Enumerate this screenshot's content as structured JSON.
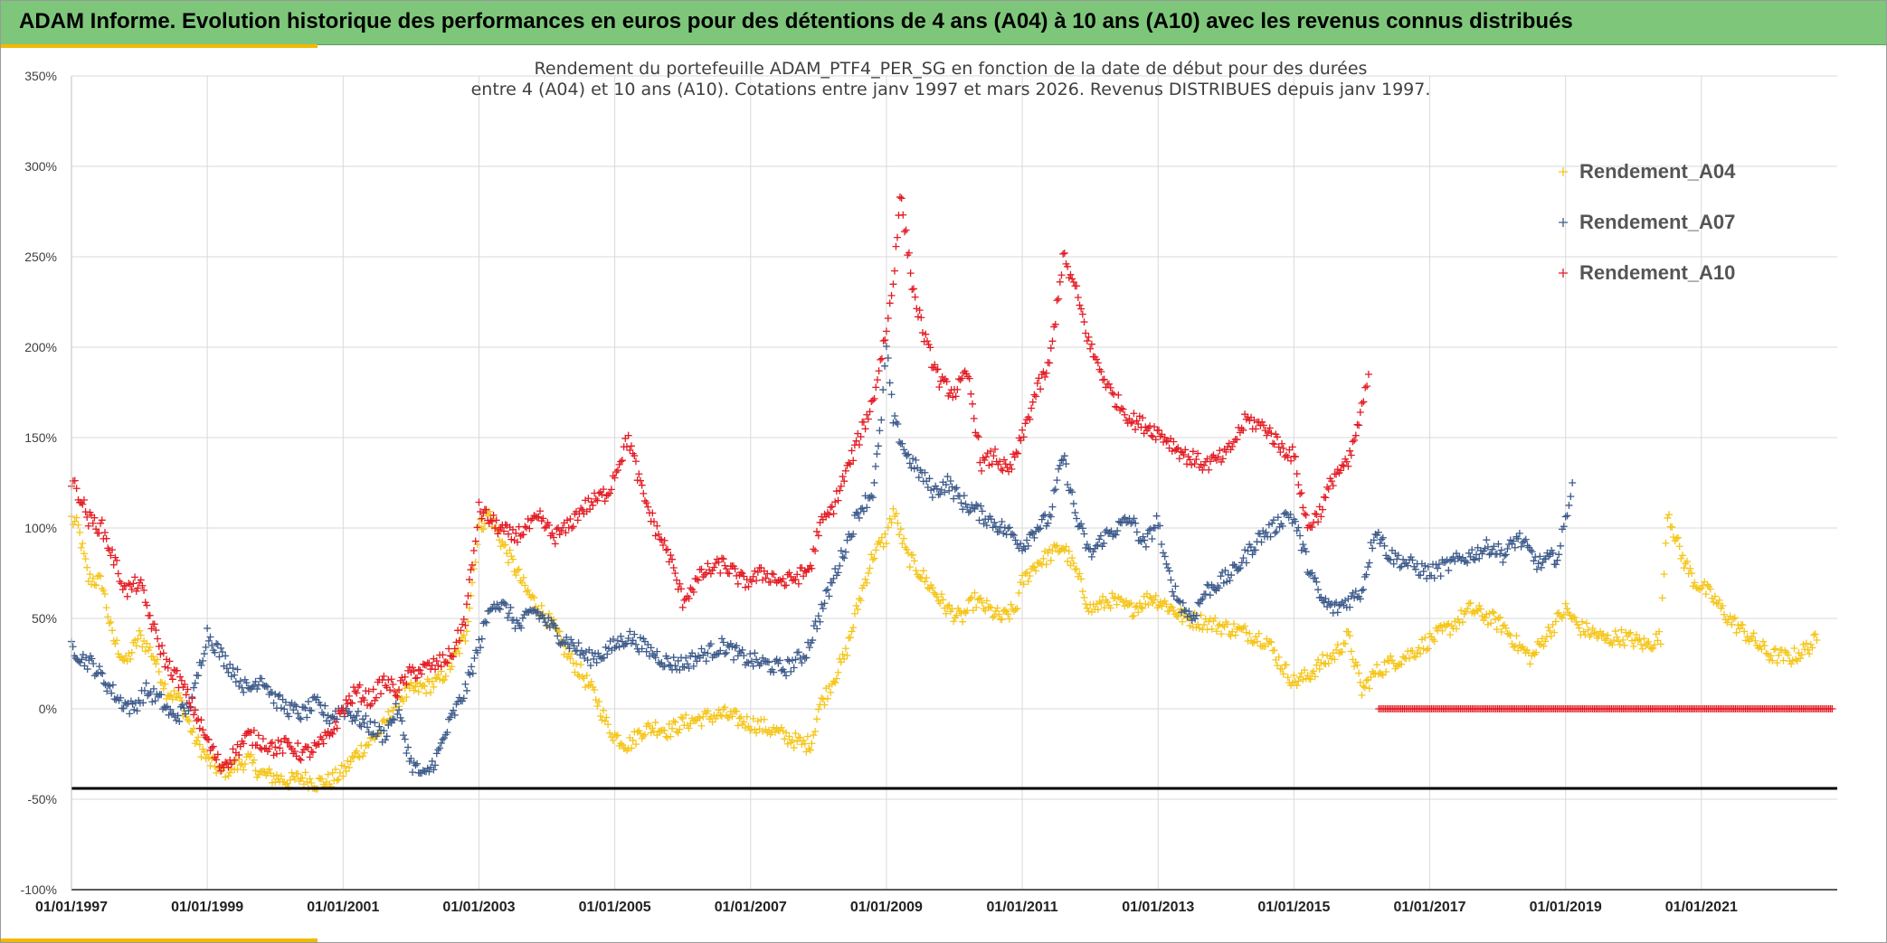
{
  "banner": {
    "title": "ADAM Informe. Evolution historique des performances en euros pour des détentions de 4 ans (A04) à 10 ans (A10) avec les revenus connus distribués",
    "background": "#7dc67a",
    "accent": "#f5b800"
  },
  "chart_data": {
    "type": "scatter",
    "title_line1": "Rendement du portefeuille ADAM_PTF4_PER_SG  en fonction de la date de début pour des durées",
    "title_line2": "entre 4 (A04) et 10 ans (A10). Cotations entre janv 1997 et mars 2026. Revenus DISTRIBUES depuis janv 1997.",
    "x_range": [
      1997.0,
      2023.0
    ],
    "ylim": [
      -100,
      350
    ],
    "y_ticks": [
      -100,
      -50,
      0,
      50,
      100,
      150,
      200,
      250,
      300,
      350
    ],
    "y_tick_labels": [
      "-100%",
      "-50%",
      "0%",
      "50%",
      "100%",
      "150%",
      "200%",
      "250%",
      "300%",
      "350%"
    ],
    "x_ticks": [
      1997,
      1999,
      2001,
      2003,
      2005,
      2007,
      2009,
      2011,
      2013,
      2015,
      2017,
      2019,
      2021
    ],
    "x_tick_labels": [
      "01/01/1997",
      "01/01/1999",
      "01/01/2001",
      "01/01/2003",
      "01/01/2005",
      "01/01/2007",
      "01/01/2009",
      "01/01/2011",
      "01/01/2013",
      "01/01/2015",
      "01/01/2017",
      "01/01/2019",
      "01/01/2021"
    ],
    "reference_line": -44,
    "legend_position": "top-right",
    "grid": true,
    "series": [
      {
        "name": "Rendement_A04",
        "color": "#f5c518",
        "x": [
          1997.0,
          1997.1,
          1997.25,
          1997.45,
          1997.6,
          1997.8,
          1998.0,
          1998.2,
          1998.4,
          1998.6,
          1998.8,
          1999.0,
          1999.2,
          1999.4,
          1999.6,
          1999.8,
          2000.0,
          2000.2,
          2000.4,
          2000.6,
          2000.8,
          2001.0,
          2001.2,
          2001.4,
          2001.6,
          2001.8,
          2002.0,
          2002.2,
          2002.4,
          2002.6,
          2002.8,
          2002.9,
          2003.0,
          2003.15,
          2003.3,
          2003.5,
          2003.7,
          2003.9,
          2004.1,
          2004.3,
          2004.5,
          2004.7,
          2004.9,
          2005.0,
          2005.2,
          2005.4,
          2005.6,
          2005.8,
          2006.0,
          2006.3,
          2006.6,
          2006.9,
          2007.2,
          2007.5,
          2007.8,
          2007.9,
          2008.0,
          2008.2,
          2008.4,
          2008.6,
          2008.8,
          2009.0,
          2009.1,
          2009.3,
          2009.5,
          2009.7,
          2009.9,
          2010.1,
          2010.3,
          2010.5,
          2010.7,
          2010.9,
          2011.0,
          2011.2,
          2011.4,
          2011.6,
          2011.8,
          2012.0,
          2012.3,
          2012.6,
          2012.9,
          2013.1,
          2013.4,
          2013.7,
          2014.0,
          2014.3,
          2014.6,
          2014.8,
          2015.0,
          2015.2,
          2015.4,
          2015.6,
          2015.8,
          2016.0,
          2016.2,
          2016.4,
          2016.7,
          2017.0,
          2017.3,
          2017.6,
          2017.9,
          2018.1,
          2018.3,
          2018.5,
          2018.7,
          2018.9,
          2019.0,
          2019.2,
          2019.4,
          2019.6,
          2019.8,
          2020.0,
          2020.2,
          2020.4,
          2020.5,
          2020.7,
          2020.9,
          2021.0,
          2021.2,
          2021.4,
          2021.7,
          2022.0,
          2022.3,
          2022.5,
          2022.7
        ],
        "y": [
          105,
          100,
          72,
          70,
          40,
          25,
          40,
          30,
          10,
          5,
          -15,
          -28,
          -35,
          -32,
          -28,
          -36,
          -38,
          -40,
          -38,
          -41,
          -40,
          -35,
          -25,
          -18,
          -10,
          5,
          10,
          12,
          15,
          25,
          40,
          70,
          100,
          108,
          95,
          80,
          65,
          55,
          45,
          30,
          20,
          8,
          -10,
          -15,
          -20,
          -12,
          -10,
          -12,
          -8,
          -5,
          -3,
          -7,
          -10,
          -15,
          -20,
          -18,
          0,
          15,
          30,
          60,
          85,
          95,
          110,
          85,
          75,
          65,
          55,
          50,
          60,
          55,
          50,
          55,
          70,
          80,
          85,
          90,
          75,
          55,
          60,
          55,
          62,
          58,
          50,
          48,
          45,
          42,
          38,
          25,
          15,
          18,
          25,
          30,
          40,
          10,
          20,
          25,
          30,
          38,
          45,
          55,
          50,
          45,
          35,
          28,
          40,
          50,
          55,
          45,
          42,
          38,
          40,
          38,
          35,
          40,
          110,
          85,
          70,
          68,
          60,
          50,
          40,
          30,
          28,
          32,
          38
        ]
      },
      {
        "name": "Rendement_A07",
        "color": "#3c5a8a",
        "x": [
          1997.0,
          1997.15,
          1997.3,
          1997.5,
          1997.7,
          1997.9,
          1998.1,
          1998.3,
          1998.5,
          1998.7,
          1998.8,
          1999.0,
          1999.2,
          1999.4,
          1999.6,
          1999.8,
          2000.0,
          2000.2,
          2000.4,
          2000.6,
          2000.8,
          2001.0,
          2001.2,
          2001.4,
          2001.6,
          2001.8,
          2002.0,
          2002.2,
          2002.4,
          2002.6,
          2002.8,
          2003.0,
          2003.2,
          2003.4,
          2003.6,
          2003.8,
          2004.0,
          2004.2,
          2004.4,
          2004.6,
          2004.8,
          2005.0,
          2005.2,
          2005.4,
          2005.6,
          2005.8,
          2006.0,
          2006.3,
          2006.6,
          2006.9,
          2007.2,
          2007.5,
          2007.8,
          2008.0,
          2008.2,
          2008.4,
          2008.6,
          2008.8,
          2008.9,
          2009.0,
          2009.1,
          2009.3,
          2009.5,
          2009.7,
          2009.9,
          2010.1,
          2010.3,
          2010.5,
          2010.7,
          2010.9,
          2011.0,
          2011.2,
          2011.4,
          2011.6,
          2011.8,
          2012.0,
          2012.2,
          2012.4,
          2012.6,
          2012.8,
          2013.0,
          2013.1,
          2013.3,
          2013.5,
          2013.7,
          2013.9,
          2014.1,
          2014.3,
          2014.5,
          2014.7,
          2014.9,
          2015.0,
          2015.2,
          2015.4,
          2015.6,
          2015.8,
          2016.0,
          2016.2,
          2016.4,
          2016.7,
          2017.0,
          2017.3,
          2017.6,
          2017.9,
          2018.1,
          2018.3,
          2018.6,
          2018.9,
          2019.0,
          2019.1
        ],
        "y": [
          35,
          28,
          25,
          15,
          5,
          0,
          10,
          5,
          -5,
          0,
          8,
          42,
          30,
          20,
          10,
          18,
          5,
          0,
          -3,
          3,
          -5,
          0,
          -5,
          -10,
          -15,
          0,
          -30,
          -38,
          -25,
          -5,
          10,
          35,
          60,
          55,
          45,
          55,
          48,
          40,
          35,
          28,
          30,
          35,
          40,
          35,
          30,
          25,
          25,
          30,
          35,
          28,
          25,
          22,
          30,
          50,
          70,
          90,
          110,
          120,
          150,
          200,
          160,
          140,
          130,
          120,
          125,
          115,
          110,
          105,
          100,
          95,
          90,
          100,
          105,
          140,
          105,
          85,
          95,
          100,
          105,
          90,
          105,
          80,
          60,
          50,
          65,
          70,
          75,
          85,
          95,
          100,
          108,
          105,
          80,
          60,
          55,
          60,
          65,
          100,
          85,
          80,
          75,
          80,
          85,
          90,
          85,
          95,
          80,
          85,
          105,
          125
        ]
      },
      {
        "name": "Rendement_A10",
        "color": "#e31b23",
        "x": [
          1997.0,
          1997.1,
          1997.25,
          1997.45,
          1997.6,
          1997.8,
          1998.0,
          1998.2,
          1998.4,
          1998.6,
          1998.8,
          1999.0,
          1999.2,
          1999.4,
          1999.6,
          1999.8,
          2000.0,
          2000.2,
          2000.4,
          2000.6,
          2000.8,
          2001.0,
          2001.2,
          2001.4,
          2001.6,
          2001.8,
          2002.0,
          2002.2,
          2002.4,
          2002.6,
          2002.8,
          2002.9,
          2003.0,
          2003.15,
          2003.3,
          2003.5,
          2003.7,
          2003.9,
          2004.1,
          2004.3,
          2004.5,
          2004.7,
          2004.9,
          2005.0,
          2005.2,
          2005.4,
          2005.6,
          2005.8,
          2006.0,
          2006.3,
          2006.6,
          2006.9,
          2007.2,
          2007.5,
          2007.8,
          2007.9,
          2008.0,
          2008.2,
          2008.4,
          2008.6,
          2008.8,
          2009.0,
          2009.1,
          2009.2,
          2009.4,
          2009.6,
          2009.8,
          2010.0,
          2010.2,
          2010.4,
          2010.6,
          2010.8,
          2011.0,
          2011.2,
          2011.4,
          2011.6,
          2011.8,
          2012.0,
          2012.3,
          2012.6,
          2012.9,
          2013.1,
          2013.4,
          2013.7,
          2014.0,
          2014.3,
          2014.6,
          2014.8,
          2015.0,
          2015.2,
          2015.4,
          2015.6,
          2015.8,
          2016.0,
          2016.1
        ],
        "y": [
          125,
          120,
          105,
          100,
          85,
          65,
          70,
          45,
          25,
          15,
          0,
          -18,
          -32,
          -25,
          -15,
          -18,
          -22,
          -20,
          -25,
          -22,
          -15,
          0,
          10,
          5,
          15,
          10,
          20,
          22,
          25,
          30,
          50,
          80,
          110,
          105,
          100,
          95,
          100,
          105,
          95,
          100,
          110,
          115,
          120,
          130,
          150,
          120,
          100,
          85,
          60,
          75,
          80,
          70,
          75,
          70,
          75,
          80,
          100,
          110,
          130,
          150,
          170,
          210,
          235,
          285,
          230,
          200,
          180,
          175,
          185,
          135,
          140,
          130,
          150,
          175,
          190,
          250,
          230,
          200,
          175,
          160,
          155,
          150,
          140,
          135,
          140,
          160,
          155,
          145,
          140,
          100,
          110,
          130,
          135,
          165,
          185
        ]
      },
      {
        "name": "zero-run",
        "color": "#e31b23",
        "x_start": 2016.25,
        "x_end": 2022.95,
        "value": 0
      }
    ]
  }
}
